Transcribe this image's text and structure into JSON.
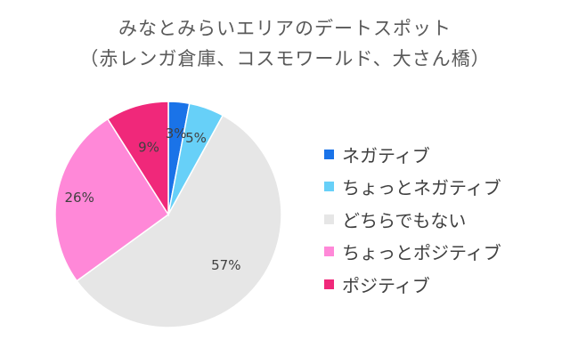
{
  "chart_data": {
    "type": "pie",
    "title": "みなとみらいエリアのデートスポット",
    "subtitle": "（赤レンガ倉庫、コスモワールド、大さん橋）",
    "categories": [
      "ネガティブ",
      "ちょっとネガティブ",
      "どちらでもない",
      "ちょっとポジティブ",
      "ポジティブ"
    ],
    "values": [
      3,
      5,
      57,
      26,
      9
    ],
    "data_labels": [
      "3%",
      "5%",
      "57%",
      "26%",
      "9%"
    ],
    "colors": [
      "#1a73e8",
      "#67d0f8",
      "#e6e6e6",
      "#ff88d8",
      "#f0287a"
    ],
    "legend_position": "right"
  }
}
